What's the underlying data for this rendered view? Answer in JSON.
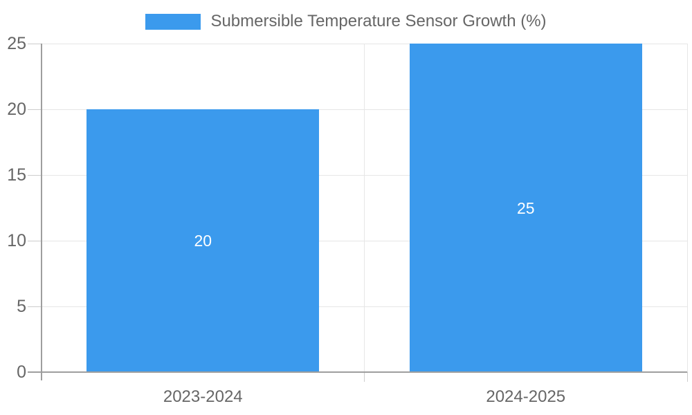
{
  "chart_data": {
    "type": "bar",
    "categories": [
      "2023-2024",
      "2024-2025"
    ],
    "series": [
      {
        "name": "Submersible Temperature Sensor Growth (%)",
        "values": [
          20,
          25
        ],
        "value_labels": [
          "20",
          "25"
        ]
      }
    ],
    "xlabel": "",
    "ylabel": "",
    "ylim": [
      0,
      25
    ],
    "yticks": [
      0,
      5,
      10,
      15,
      20,
      25
    ],
    "grid": true,
    "legend_position": "top",
    "bar_slot_fraction": 0.72,
    "colors": {
      "bar": "#3B9AED",
      "bar_value_label": "#FFFFFF",
      "axis_text": "#666666",
      "legend_text": "#666666",
      "gridline": "#E6E6E6",
      "tick": "#CCCCCC",
      "axis_line": "#9E9E9E",
      "background": "#FFFFFF"
    }
  }
}
